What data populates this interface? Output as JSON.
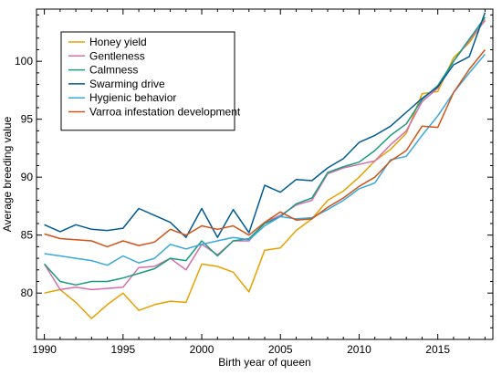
{
  "chart_data": {
    "type": "line",
    "xlabel": "Birth year of queen",
    "ylabel": "Average breeding value",
    "xlim": [
      1989.5,
      2018.5
    ],
    "ylim": [
      76,
      104.5
    ],
    "xticks": [
      1990,
      1995,
      2000,
      2005,
      2010,
      2015
    ],
    "yticks": [
      80,
      85,
      90,
      95,
      100
    ],
    "grid": false,
    "legend_position": "top-left",
    "x": [
      1990,
      1991,
      1992,
      1993,
      1994,
      1995,
      1996,
      1997,
      1998,
      1999,
      2000,
      2001,
      2002,
      2003,
      2004,
      2005,
      2006,
      2007,
      2008,
      2009,
      2010,
      2011,
      2012,
      2013,
      2014,
      2015,
      2016,
      2017,
      2018
    ],
    "series": [
      {
        "name": "Honey yield",
        "color": "#e8a000",
        "values": [
          80.0,
          80.3,
          79.2,
          77.8,
          79.0,
          80.0,
          78.5,
          79.0,
          79.3,
          79.2,
          82.5,
          82.3,
          81.8,
          80.1,
          83.7,
          83.9,
          85.4,
          86.4,
          88.0,
          88.8,
          90.0,
          91.4,
          92.4,
          93.8,
          97.2,
          97.4,
          100.3,
          101.6,
          103.6
        ]
      },
      {
        "name": "Gentleness",
        "color": "#d36fb0",
        "values": [
          82.5,
          80.3,
          80.5,
          80.3,
          80.4,
          80.5,
          82.2,
          82.3,
          83.0,
          82.0,
          84.2,
          83.3,
          84.5,
          84.5,
          86.1,
          86.7,
          87.6,
          88.0,
          90.3,
          90.8,
          91.1,
          91.4,
          92.8,
          94.0,
          96.5,
          97.7,
          100.0,
          101.8,
          103.5
        ]
      },
      {
        "name": "Calmness",
        "color": "#179c7d",
        "values": [
          82.5,
          81.0,
          80.7,
          81.0,
          81.0,
          81.3,
          81.7,
          82.1,
          83.0,
          82.8,
          84.5,
          83.2,
          84.5,
          84.7,
          86.0,
          86.6,
          87.7,
          88.2,
          90.4,
          90.9,
          91.3,
          92.3,
          93.6,
          94.6,
          96.7,
          97.9,
          100.0,
          101.9,
          103.8
        ]
      },
      {
        "name": "Swarming drive",
        "color": "#005b94",
        "values": [
          85.9,
          85.3,
          85.9,
          85.5,
          85.4,
          85.6,
          87.3,
          86.7,
          86.1,
          84.8,
          87.3,
          84.8,
          87.2,
          85.2,
          89.3,
          88.7,
          89.8,
          89.7,
          90.8,
          91.6,
          93.0,
          93.6,
          94.4,
          95.6,
          96.8,
          97.8,
          99.7,
          100.4,
          104.2
        ]
      },
      {
        "name": "Hygienic behavior",
        "color": "#3aa8dd",
        "values": [
          83.4,
          83.2,
          83.0,
          82.8,
          82.4,
          83.2,
          82.6,
          83.0,
          84.2,
          83.8,
          84.2,
          84.5,
          84.8,
          84.6,
          85.8,
          86.6,
          86.4,
          86.5,
          87.2,
          88.0,
          89.0,
          89.5,
          91.5,
          91.8,
          93.6,
          95.3,
          97.3,
          99.0,
          100.6
        ]
      },
      {
        "name": "Varroa infestation development",
        "color": "#d25316",
        "values": [
          85.1,
          84.7,
          84.6,
          84.5,
          84.0,
          84.5,
          84.1,
          84.4,
          85.5,
          85.0,
          85.8,
          85.5,
          85.8,
          85.0,
          86.1,
          87.0,
          86.3,
          86.4,
          87.4,
          88.2,
          89.2,
          90.0,
          91.4,
          92.3,
          94.4,
          94.3,
          97.3,
          99.3,
          101.0
        ]
      }
    ]
  }
}
